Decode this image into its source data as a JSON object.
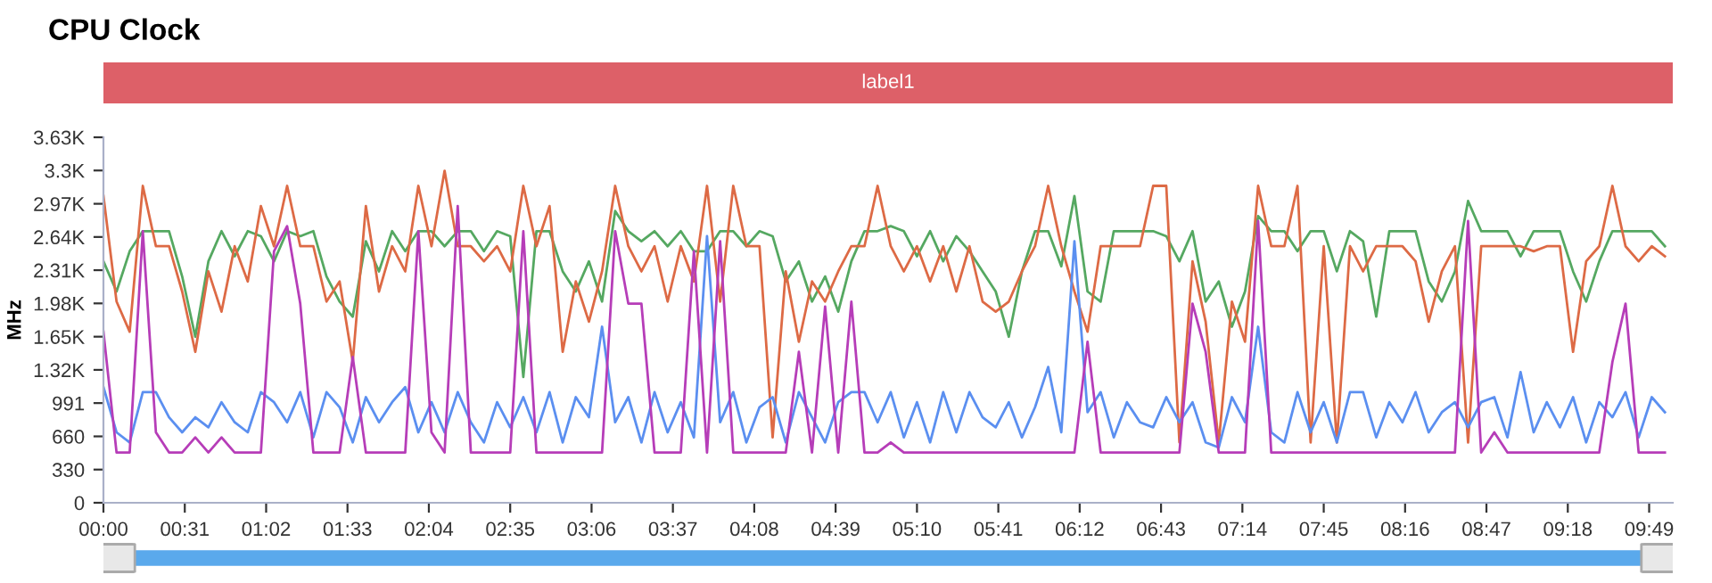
{
  "chart_data": {
    "type": "line",
    "title": "CPU Clock",
    "ylabel": "MHz",
    "x": [
      0,
      5,
      10,
      15,
      20,
      25,
      30,
      35,
      40,
      45,
      50,
      55,
      60,
      65,
      70,
      75,
      80,
      85,
      90,
      95,
      100,
      105,
      110,
      115,
      120,
      125,
      130,
      135,
      140,
      145,
      150,
      155,
      160,
      165,
      170,
      175,
      180,
      185,
      190,
      195,
      200,
      205,
      210,
      215,
      220,
      225,
      230,
      235,
      240,
      245,
      250,
      255,
      260,
      265,
      270,
      275,
      280,
      285,
      290,
      295,
      300,
      305,
      310,
      315,
      320,
      325,
      330,
      335,
      340,
      345,
      350,
      355,
      360,
      365,
      370,
      375,
      380,
      385,
      390,
      395,
      400,
      405,
      410,
      415,
      420,
      425,
      430,
      435,
      440,
      445,
      450,
      455,
      460,
      465,
      470,
      475,
      480,
      485,
      490,
      495,
      500,
      505,
      510,
      515,
      520,
      525,
      530,
      535,
      540,
      545,
      550,
      555,
      560,
      565,
      570,
      575,
      580,
      585,
      590,
      595
    ],
    "xlim": [
      0,
      598
    ],
    "xticks": [
      {
        "value": 0,
        "label": "00:00"
      },
      {
        "value": 31,
        "label": "00:31"
      },
      {
        "value": 62,
        "label": "01:02"
      },
      {
        "value": 93,
        "label": "01:33"
      },
      {
        "value": 124,
        "label": "02:04"
      },
      {
        "value": 155,
        "label": "02:35"
      },
      {
        "value": 186,
        "label": "03:06"
      },
      {
        "value": 217,
        "label": "03:37"
      },
      {
        "value": 248,
        "label": "04:08"
      },
      {
        "value": 279,
        "label": "04:39"
      },
      {
        "value": 310,
        "label": "05:10"
      },
      {
        "value": 341,
        "label": "05:41"
      },
      {
        "value": 372,
        "label": "06:12"
      },
      {
        "value": 403,
        "label": "06:43"
      },
      {
        "value": 434,
        "label": "07:14"
      },
      {
        "value": 465,
        "label": "07:45"
      },
      {
        "value": 496,
        "label": "08:16"
      },
      {
        "value": 527,
        "label": "08:47"
      },
      {
        "value": 558,
        "label": "09:18"
      },
      {
        "value": 589,
        "label": "09:49"
      }
    ],
    "ylim": [
      0,
      3633
    ],
    "yticks": [
      0,
      330,
      660,
      991,
      {
        "value": 1321,
        "label": "1.32K"
      },
      {
        "value": 1651,
        "label": "1.65K"
      },
      {
        "value": 1982,
        "label": "1.98K"
      },
      {
        "value": 2312,
        "label": "2.31K"
      },
      {
        "value": 2642,
        "label": "2.64K"
      },
      {
        "value": 2972,
        "label": "2.97K"
      },
      {
        "value": 3303,
        "label": "3.3K"
      },
      {
        "value": 3633,
        "label": "3.63K"
      }
    ],
    "annotations": [
      "label1"
    ],
    "series": [
      {
        "color": "#55a861",
        "values": [
          2400,
          2100,
          2500,
          2700,
          2700,
          2700,
          2250,
          1650,
          2400,
          2700,
          2450,
          2700,
          2650,
          2400,
          2700,
          2650,
          2700,
          2250,
          2000,
          1850,
          2600,
          2300,
          2700,
          2500,
          2700,
          2700,
          2550,
          2700,
          2700,
          2500,
          2700,
          2650,
          1250,
          2700,
          2700,
          2300,
          2100,
          2400,
          2000,
          2900,
          2700,
          2600,
          2700,
          2550,
          2700,
          2500,
          2500,
          2700,
          2700,
          2550,
          2700,
          2650,
          2200,
          2400,
          2000,
          2250,
          1900,
          2400,
          2700,
          2700,
          2750,
          2700,
          2450,
          2700,
          2400,
          2650,
          2500,
          2300,
          2100,
          1650,
          2300,
          2700,
          2700,
          2350,
          3050,
          2100,
          2000,
          2700,
          2700,
          2700,
          2700,
          2650,
          2400,
          2700,
          2000,
          2200,
          1750,
          2100,
          2850,
          2700,
          2700,
          2500,
          2700,
          2700,
          2300,
          2700,
          2600,
          1850,
          2700,
          2700,
          2700,
          2200,
          2000,
          2300,
          3000,
          2700,
          2700,
          2700,
          2450,
          2700,
          2700,
          2700,
          2300,
          2000,
          2400,
          2700,
          2700,
          2700,
          2700,
          2550
        ]
      },
      {
        "color": "#dd6a45",
        "values": [
          3050,
          2000,
          1700,
          3150,
          2550,
          2550,
          2100,
          1500,
          2300,
          1900,
          2550,
          2200,
          2950,
          2550,
          3150,
          2550,
          2550,
          2000,
          2200,
          1400,
          2950,
          2100,
          2550,
          2300,
          3150,
          2550,
          3300,
          2550,
          2550,
          2400,
          2550,
          2300,
          3150,
          2550,
          2950,
          1500,
          2200,
          1800,
          2300,
          3150,
          2550,
          2300,
          2550,
          2000,
          2550,
          2200,
          3150,
          2000,
          3150,
          2550,
          2550,
          650,
          2300,
          1600,
          2200,
          2000,
          2300,
          2550,
          2550,
          3150,
          2550,
          2300,
          2550,
          2200,
          2550,
          2100,
          2550,
          2000,
          1900,
          2000,
          2300,
          2550,
          3150,
          2550,
          2100,
          1700,
          2550,
          2550,
          2550,
          2550,
          3150,
          3150,
          600,
          2400,
          1800,
          600,
          2000,
          1600,
          3150,
          2550,
          2550,
          3150,
          600,
          2550,
          600,
          2550,
          2300,
          2550,
          2550,
          2550,
          2400,
          1800,
          2300,
          2550,
          600,
          2550,
          2550,
          2550,
          2550,
          2500,
          2550,
          2550,
          1500,
          2400,
          2550,
          3150,
          2550,
          2400,
          2550,
          2450
        ]
      },
      {
        "color": "#5b8ff0",
        "values": [
          1150,
          700,
          600,
          1100,
          1100,
          850,
          700,
          850,
          750,
          1000,
          800,
          700,
          1100,
          1000,
          800,
          1100,
          650,
          1100,
          950,
          600,
          1050,
          800,
          1000,
          1150,
          700,
          1000,
          700,
          1100,
          800,
          600,
          1000,
          750,
          1050,
          700,
          1100,
          600,
          1050,
          850,
          1750,
          800,
          1050,
          600,
          1100,
          700,
          1000,
          650,
          2650,
          800,
          1100,
          600,
          950,
          1050,
          600,
          1100,
          850,
          600,
          1000,
          1100,
          1100,
          800,
          1100,
          650,
          1000,
          600,
          1100,
          700,
          1100,
          850,
          750,
          1000,
          650,
          950,
          1350,
          700,
          2600,
          900,
          1100,
          650,
          1000,
          800,
          750,
          1050,
          800,
          1000,
          600,
          550,
          1050,
          800,
          1750,
          700,
          600,
          1100,
          700,
          1000,
          600,
          1100,
          1100,
          650,
          1000,
          800,
          1100,
          700,
          900,
          1000,
          750,
          1000,
          1050,
          650,
          1300,
          700,
          1000,
          750,
          1050,
          600,
          1000,
          850,
          1100,
          650,
          1050,
          900
        ]
      },
      {
        "color": "#b63db8",
        "values": [
          1700,
          500,
          500,
          2700,
          700,
          500,
          500,
          650,
          500,
          650,
          500,
          500,
          500,
          2500,
          2750,
          1980,
          500,
          500,
          500,
          1450,
          500,
          500,
          500,
          500,
          2700,
          700,
          500,
          2950,
          500,
          500,
          500,
          500,
          2700,
          500,
          500,
          500,
          500,
          500,
          500,
          2700,
          1980,
          1980,
          500,
          500,
          500,
          2500,
          500,
          2600,
          500,
          500,
          500,
          500,
          500,
          1500,
          500,
          1950,
          500,
          2000,
          500,
          500,
          600,
          500,
          500,
          500,
          500,
          500,
          500,
          500,
          500,
          500,
          500,
          500,
          500,
          500,
          500,
          1600,
          500,
          500,
          500,
          500,
          500,
          500,
          500,
          1980,
          1500,
          500,
          500,
          500,
          2800,
          500,
          500,
          500,
          500,
          500,
          500,
          500,
          500,
          500,
          500,
          500,
          500,
          500,
          500,
          500,
          2800,
          500,
          700,
          500,
          500,
          500,
          500,
          500,
          500,
          500,
          500,
          1400,
          1980,
          500,
          500,
          500
        ]
      }
    ]
  }
}
